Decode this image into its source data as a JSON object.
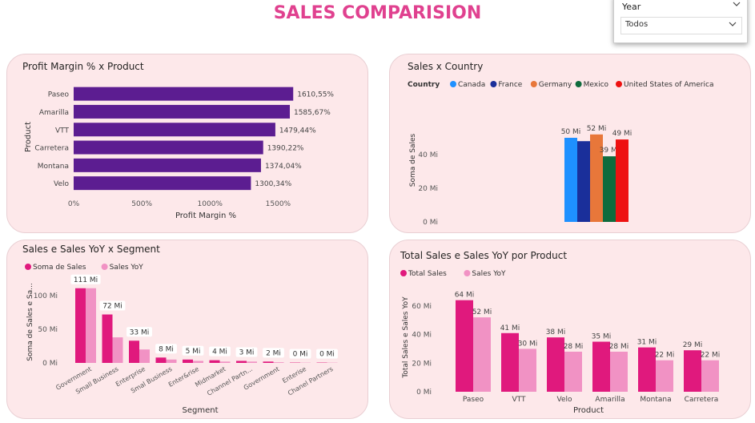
{
  "page": {
    "title": "SALES COMPARISION"
  },
  "slicer": {
    "header": "Year",
    "value": "Todos"
  },
  "charts": {
    "profit": {
      "title": "Profit Margin % x Product",
      "chart_data": {
        "type": "bar",
        "orientation": "horizontal",
        "categories": [
          "Paseo",
          "Amarilla",
          "VTT",
          "Carretera",
          "Montana",
          "Velo"
        ],
        "values": [
          1610.55,
          1585.67,
          1479.44,
          1390.22,
          1374.04,
          1300.34
        ],
        "value_labels": [
          "1610,55%",
          "1585,67%",
          "1479,44%",
          "1390,22%",
          "1374,04%",
          "1300,34%"
        ],
        "xlabel": "Profit Margin %",
        "ylabel": "Product",
        "xticks": [
          "0%",
          "500%",
          "1000%",
          "1500%"
        ],
        "xlim": [
          0,
          1850
        ],
        "color": "#5c1d91"
      }
    },
    "country": {
      "title": "Sales x Country",
      "legend_title": "Country",
      "chart_data": {
        "type": "bar",
        "series": [
          {
            "name": "Canada",
            "value": 50,
            "label": "50 Mi",
            "color": "#1e90ff"
          },
          {
            "name": "France",
            "value": 48,
            "label": "",
            "color": "#1a2f9a"
          },
          {
            "name": "Germany",
            "value": 52,
            "label": "52 Mi",
            "color": "#e8773a"
          },
          {
            "name": "Mexico",
            "value": 39,
            "label": "39 Mi",
            "color": "#0f6b3d"
          },
          {
            "name": "United States of America",
            "value": 49,
            "label": "49 Mi",
            "color": "#ee1111"
          }
        ],
        "ylabel": "Soma de Sales",
        "yticks": [
          "0 Mi",
          "20 Mi",
          "40 Mi"
        ],
        "ylim": [
          0,
          60
        ]
      }
    },
    "segment": {
      "title": "Sales e Sales YoY x Segment",
      "chart_data": {
        "type": "bar",
        "categories": [
          "Government",
          "Small Business",
          "Enterprise",
          "Smal Business",
          "Enter&rise",
          "Midmarket",
          "Channel Partn...",
          "Government",
          "Enterise",
          "Chanel Partners"
        ],
        "series": [
          {
            "name": "Soma de  Sales",
            "values": [
              111,
              72,
              33,
              8,
              5,
              4,
              3,
              2,
              0.5,
              0.5
            ],
            "color": "#e0197d"
          },
          {
            "name": "Sales YoY",
            "values": [
              111,
              38,
              20,
              5,
              3,
              2,
              2,
              1,
              0.4,
              0.4
            ],
            "color": "#f192c4"
          }
        ],
        "value_labels": [
          "111 Mi",
          "72 Mi",
          "33 Mi",
          "8 Mi",
          "5 Mi",
          "4 Mi",
          "3 Mi",
          "2 Mi",
          "0 Mi",
          "0 Mi"
        ],
        "xlabel": "Segment",
        "ylabel": "Soma de Sales e Sa...",
        "yticks": [
          "0 Mi",
          "50 Mi",
          "100 Mi"
        ],
        "ylim": [
          0,
          125
        ]
      }
    },
    "product": {
      "title": "Total Sales e Sales YoY por Product",
      "chart_data": {
        "type": "bar",
        "categories": [
          "Paseo",
          "VTT",
          "Velo",
          "Amarilla",
          "Montana",
          "Carretera"
        ],
        "series": [
          {
            "name": "Total Sales",
            "values": [
              64,
              41,
              38,
              35,
              31,
              29
            ],
            "labels": [
              "64 Mi",
              "41 Mi",
              "38 Mi",
              "35 Mi",
              "31 Mi",
              "29 Mi"
            ],
            "color": "#e0197d"
          },
          {
            "name": "Sales YoY",
            "values": [
              52,
              30,
              28,
              28,
              22,
              22
            ],
            "labels": [
              "52 Mi",
              "30 Mi",
              "28 Mi",
              "28 Mi",
              "22 Mi",
              "22 Mi"
            ],
            "color": "#f192c4"
          }
        ],
        "xlabel": "Product",
        "ylabel": "Total Sales e Sales YoY",
        "yticks": [
          "0 Mi",
          "20 Mi",
          "40 Mi",
          "60 Mi"
        ],
        "ylim": [
          0,
          70
        ]
      }
    }
  }
}
